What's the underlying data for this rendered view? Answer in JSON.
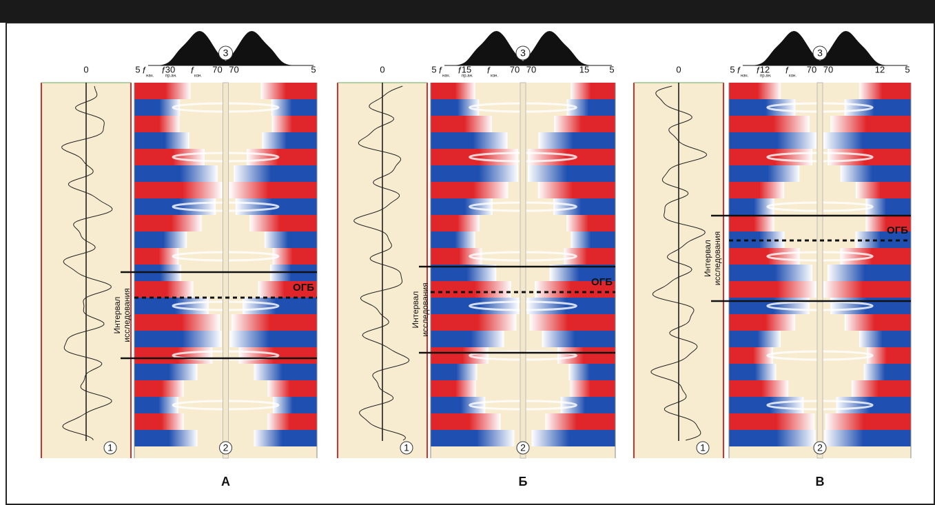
{
  "f_symbol": "f",
  "f_subscripts": [
    "нач.",
    "пр.ан.",
    "кон."
  ],
  "markers": {
    "trace": "1",
    "image": "2",
    "spectrum": "3"
  },
  "trace_axis": "0",
  "interval": [
    "Интервал",
    "исследования"
  ],
  "horizon": "ОГБ",
  "panels": [
    {
      "label": "А",
      "left_scale": [
        "5",
        "30",
        "70"
      ],
      "right_scale": [
        "70",
        "5"
      ]
    },
    {
      "label": "Б",
      "left_scale": [
        "5",
        "15",
        "70"
      ],
      "right_scale": [
        "70",
        "15",
        "5"
      ]
    },
    {
      "label": "В",
      "left_scale": [
        "5",
        "12",
        "70"
      ],
      "right_scale": [
        "70",
        "12",
        "5"
      ]
    }
  ]
}
